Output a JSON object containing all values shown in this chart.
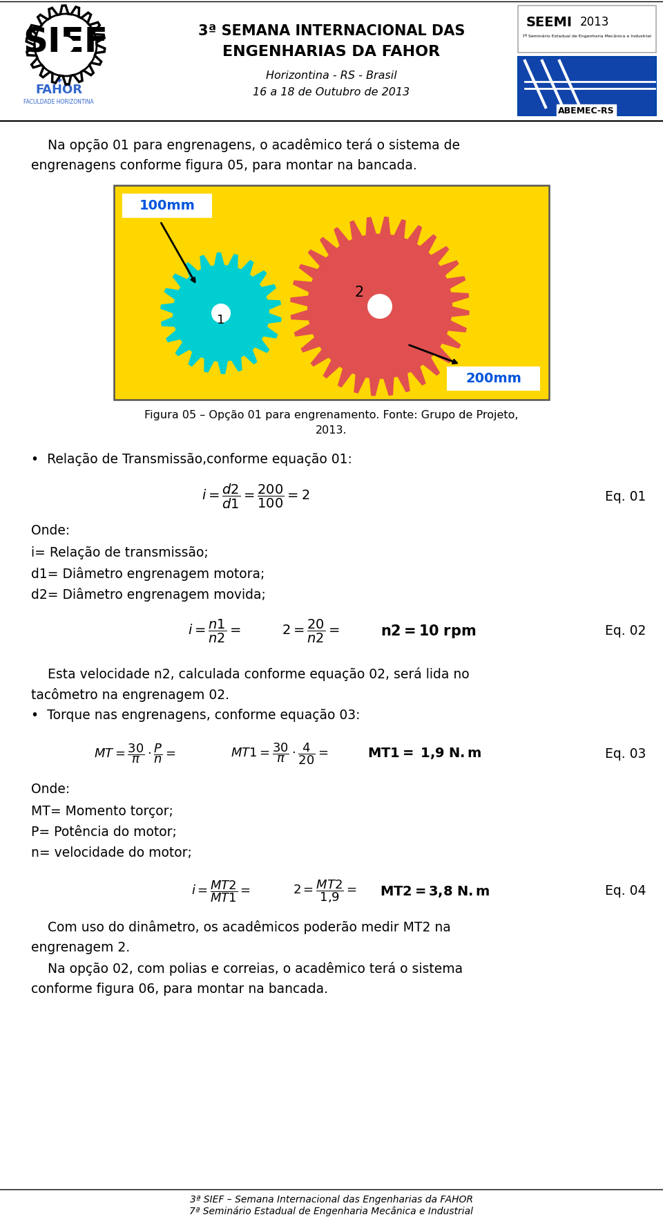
{
  "bg_color": "#ffffff",
  "header": {
    "title_line1": "3ª SEMANA INTERNACIONAL DAS",
    "title_line2": "ENGENHARIAS DA FAHOR",
    "subtitle_line1": "Horizontina - RS - Brasil",
    "subtitle_line2": "16 a 18 de Outubro de 2013"
  },
  "footer_line1": "3ª SIEF – Semana Internacional das Engenharias da FAHOR",
  "footer_line2": "7ª Seminário Estadual de Engenharia Mecânica e Industrial",
  "gear_bg": "#FFD700",
  "gear1_color": "#00CED1",
  "gear2_color": "#E05050",
  "label_color": "#0055DD",
  "intro": "    Na opção 01 para engrenagens, o acadêmico terá o sistema de\nengrenagens conforme figura 05, para montar na bancada.",
  "caption1": "Figura 05 – Opção 01 para engrenamento. Fonte: Grupo de Projeto,",
  "caption2": "2013.",
  "bullet1": "•  Relação de Transmissão,conforme equação 01:",
  "eq1": "$i = \\dfrac{d2}{d1} = \\dfrac{200}{100} = 2$",
  "eq1_label": "Eq. 01",
  "onde1": "Onde:",
  "def1": "i= Relação de transmissão;",
  "def2": "d1= Diâmetro engrenagem motora;",
  "def3": "d2= Diâmetro engrenagem movida;",
  "eq2a": "$i = \\dfrac{n1}{n2} =$",
  "eq2b": "$2 = \\dfrac{20}{n2} =$",
  "eq2c": "$\\mathbf{n2 = 10\\ rpm}$",
  "eq2_label": "Eq. 02",
  "esta": "    Esta velocidade n2, calculada conforme equação 02, será lida no\ntacômetro na engrenagem 02.",
  "bullet2": "•  Torque nas engrenagens, conforme equação 03:",
  "eq3a": "$MT = \\dfrac{30}{\\pi} \\cdot \\dfrac{P}{n} =$",
  "eq3b": "$MT1 = \\dfrac{30}{\\pi} \\cdot \\dfrac{4}{20} =$",
  "eq3c": "$\\mathbf{MT1 = \\ 1{,}9\\ N{.}m}$",
  "eq3_label": "Eq. 03",
  "onde2": "Onde:",
  "def4": "MT= Momento torçor;",
  "def5": "P= Potência do motor;",
  "def6": "n= velocidade do motor;",
  "eq4a": "$i = \\dfrac{MT2}{MT1} =$",
  "eq4b": "$2 = \\dfrac{MT2}{1{,}9} =$",
  "eq4c": "$\\mathbf{MT2 = 3{,}8\\ N{.}m}$",
  "eq4_label": "Eq. 04",
  "com_uso": "    Com uso do dinâmetro, os acadêmicos poderão medir MT2 na\nengrenagem 2.",
  "opcao02": "    Na opção 02, com polias e correias, o acadêmico terá o sistema\nconforme figura 06, para montar na bancada."
}
